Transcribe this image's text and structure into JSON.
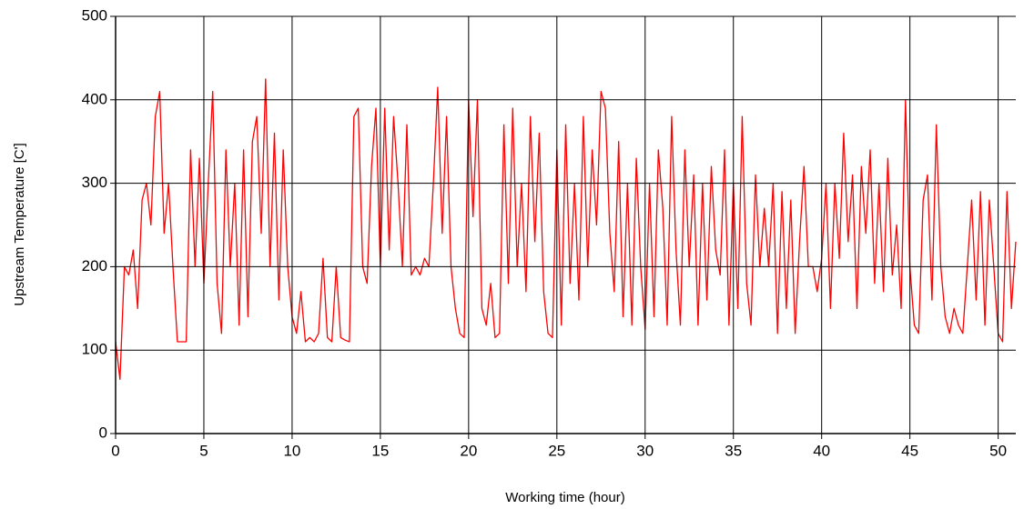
{
  "chart_data": {
    "type": "line",
    "x_label": "Working time (hour)",
    "y_label": "Upstream Temperature [C']",
    "xlim": [
      0,
      51
    ],
    "ylim": [
      0,
      500
    ],
    "xticks": [
      0,
      5,
      10,
      15,
      20,
      25,
      30,
      35,
      40,
      45,
      50
    ],
    "yticks": [
      0,
      100,
      200,
      300,
      400,
      500
    ],
    "grid": true,
    "x": [
      0,
      0.25,
      0.5,
      0.75,
      1,
      1.25,
      1.5,
      1.75,
      2,
      2.25,
      2.5,
      2.75,
      3,
      3.25,
      3.5,
      3.75,
      4,
      4.25,
      4.5,
      4.75,
      5,
      5.25,
      5.5,
      5.75,
      6,
      6.25,
      6.5,
      6.75,
      7,
      7.25,
      7.5,
      7.75,
      8,
      8.25,
      8.5,
      8.75,
      9,
      9.25,
      9.5,
      9.75,
      10,
      10.25,
      10.5,
      10.75,
      11,
      11.25,
      11.5,
      11.75,
      12,
      12.25,
      12.5,
      12.75,
      13,
      13.25,
      13.5,
      13.75,
      14,
      14.25,
      14.5,
      14.75,
      15,
      15.25,
      15.5,
      15.75,
      16,
      16.25,
      16.5,
      16.75,
      17,
      17.25,
      17.5,
      17.75,
      18,
      18.25,
      18.5,
      18.75,
      19,
      19.25,
      19.5,
      19.75,
      20,
      20.25,
      20.5,
      20.75,
      21,
      21.25,
      21.5,
      21.75,
      22,
      22.25,
      22.5,
      22.75,
      23,
      23.25,
      23.5,
      23.75,
      24,
      24.25,
      24.5,
      24.75,
      25,
      25.25,
      25.5,
      25.75,
      26,
      26.25,
      26.5,
      26.75,
      27,
      27.25,
      27.5,
      27.75,
      28,
      28.25,
      28.5,
      28.75,
      29,
      29.25,
      29.5,
      29.75,
      30,
      30.25,
      30.5,
      30.75,
      31,
      31.25,
      31.5,
      31.75,
      32,
      32.25,
      32.5,
      32.75,
      33,
      33.25,
      33.5,
      33.75,
      34,
      34.25,
      34.5,
      34.75,
      35,
      35.25,
      35.5,
      35.75,
      36,
      36.25,
      36.5,
      36.75,
      37,
      37.25,
      37.5,
      37.75,
      38,
      38.25,
      38.5,
      38.75,
      39,
      39.25,
      39.5,
      39.75,
      40,
      40.25,
      40.5,
      40.75,
      41,
      41.25,
      41.5,
      41.75,
      42,
      42.25,
      42.5,
      42.75,
      43,
      43.25,
      43.5,
      43.75,
      44,
      44.25,
      44.5,
      44.75,
      45,
      45.25,
      45.5,
      45.75,
      46,
      46.25,
      46.5,
      46.75,
      47,
      47.25,
      47.5,
      47.75,
      48,
      48.25,
      48.5,
      48.75,
      49,
      49.25,
      49.5,
      49.75,
      50,
      50.25,
      50.5,
      50.75,
      51
    ],
    "series": [
      {
        "color": "#ff0000",
        "values": [
          110,
          65,
          200,
          190,
          220,
          150,
          280,
          300,
          250,
          380,
          410,
          240,
          300,
          200,
          110,
          110,
          110,
          340,
          200,
          330,
          180,
          300,
          410,
          180,
          120,
          340,
          200,
          300,
          130,
          340,
          140,
          350,
          380,
          240,
          425,
          200,
          360,
          160,
          340,
          200,
          140,
          120,
          170,
          110,
          115,
          110,
          120,
          210,
          115,
          110,
          200,
          115,
          112,
          110,
          380,
          390,
          200,
          180,
          320,
          390,
          200,
          390,
          220,
          380,
          300,
          200,
          370,
          190,
          200,
          190,
          210,
          200,
          300,
          415,
          240,
          380,
          200,
          150,
          120,
          115,
          400,
          260,
          400,
          150,
          130,
          180,
          115,
          120,
          370,
          180,
          390,
          200,
          300,
          170,
          380,
          230,
          360,
          170,
          120,
          115,
          340,
          130,
          370,
          180,
          300,
          160,
          380,
          200,
          340,
          250,
          410,
          390,
          240,
          170,
          350,
          140,
          300,
          130,
          330,
          200,
          125,
          300,
          140,
          340,
          270,
          130,
          380,
          220,
          130,
          340,
          200,
          310,
          130,
          300,
          160,
          320,
          220,
          190,
          340,
          130,
          300,
          150,
          380,
          180,
          130,
          310,
          200,
          270,
          200,
          300,
          120,
          290,
          150,
          280,
          120,
          230,
          320,
          200,
          200,
          170,
          210,
          300,
          150,
          300,
          210,
          360,
          230,
          310,
          150,
          320,
          240,
          340,
          180,
          300,
          170,
          330,
          190,
          250,
          150,
          400,
          200,
          130,
          120,
          280,
          310,
          160,
          370,
          200,
          140,
          120,
          150,
          130,
          120,
          200,
          280,
          160,
          290,
          130,
          280,
          200,
          120,
          110,
          290,
          150,
          230
        ]
      }
    ]
  }
}
